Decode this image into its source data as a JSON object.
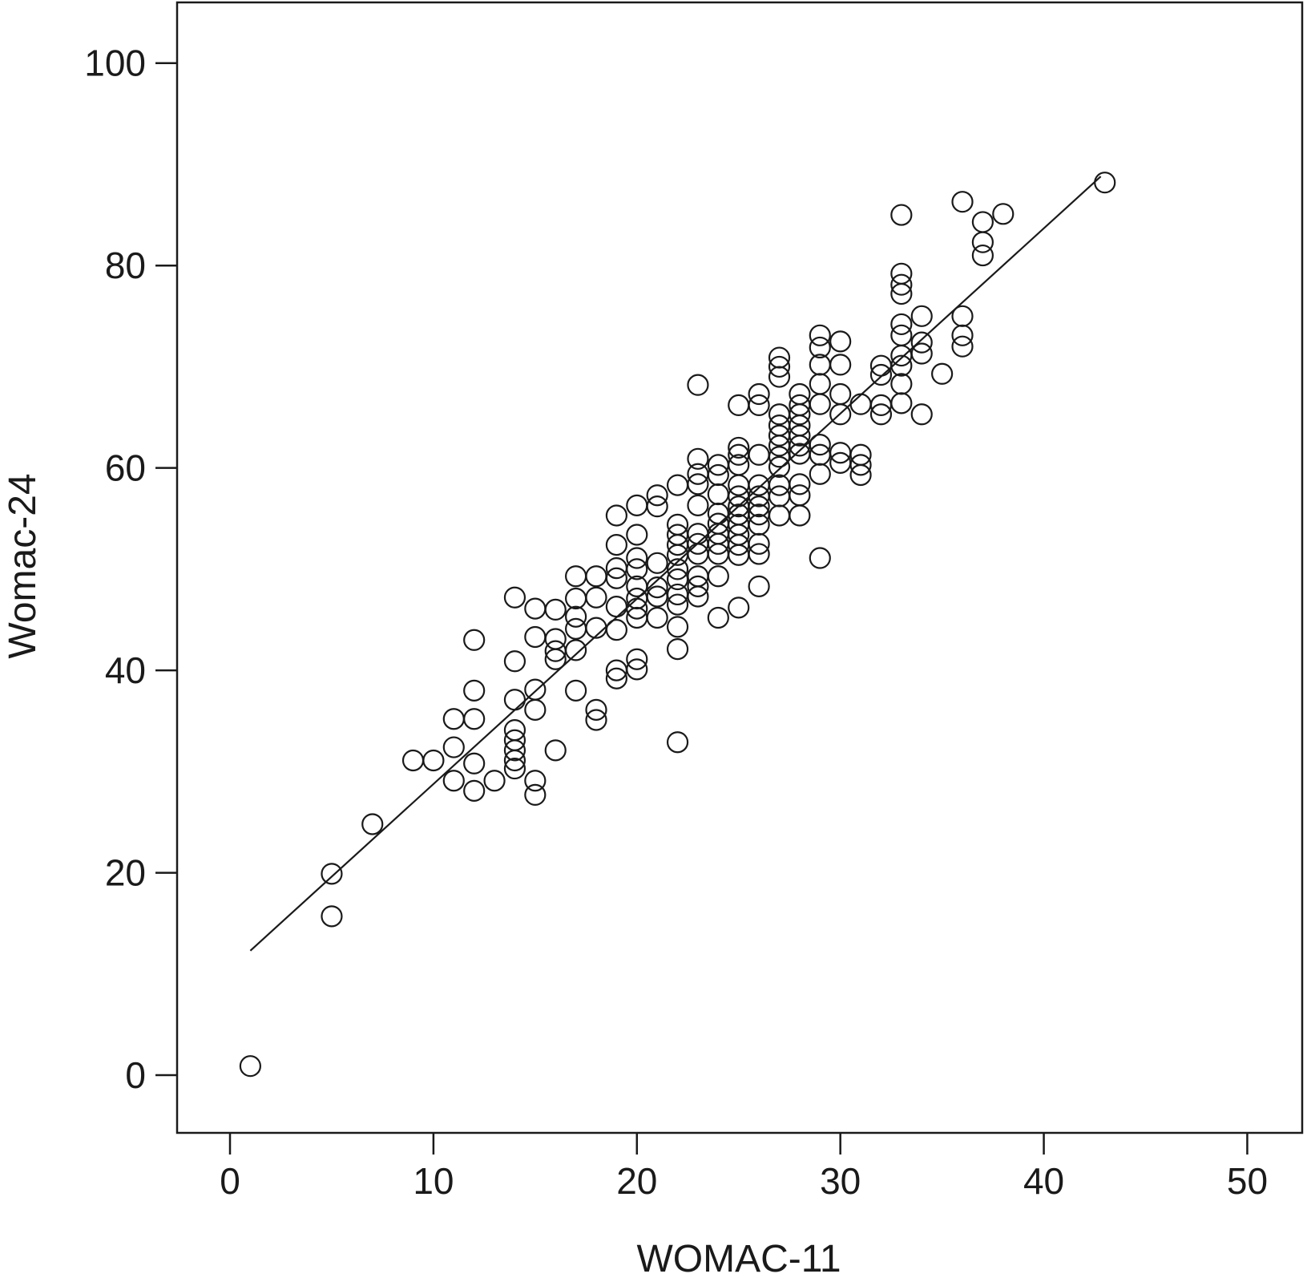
{
  "chart_data": {
    "type": "scatter",
    "title": "",
    "xlabel": "WOMAC-11",
    "ylabel": "Womac-24",
    "xlim": [
      -2.6,
      52.7
    ],
    "ylim": [
      -5.7,
      106
    ],
    "x_ticks": [
      0,
      10,
      20,
      30,
      40,
      50
    ],
    "y_ticks": [
      0,
      20,
      40,
      60,
      80,
      100
    ],
    "x_tick_labels": [
      "0",
      "10",
      "20",
      "30",
      "40",
      "50"
    ],
    "y_tick_labels": [
      "0",
      "20",
      "40",
      "60",
      "80",
      "100"
    ],
    "grid": false,
    "legend": "none",
    "marker": "open-circle",
    "colors": {
      "line": "#1a1a1a",
      "marker_stroke": "#1a1a1a",
      "background": "#ffffff"
    },
    "fit_line": {
      "x": [
        1,
        42.8
      ],
      "y": [
        12.3,
        88.8
      ]
    },
    "series": [
      {
        "points": [
          [
            1,
            0.9
          ],
          [
            5,
            19.9
          ],
          [
            5,
            15.7
          ],
          [
            7,
            24.8
          ],
          [
            9,
            31.1
          ],
          [
            10,
            31.1
          ],
          [
            11,
            35.2
          ],
          [
            11,
            32.4
          ],
          [
            11,
            29.1
          ],
          [
            12,
            43
          ],
          [
            12,
            38
          ],
          [
            12,
            35.2
          ],
          [
            12,
            30.8
          ],
          [
            12,
            28.1
          ],
          [
            13,
            29.1
          ],
          [
            14,
            47.2
          ],
          [
            14,
            40.9
          ],
          [
            14,
            37.1
          ],
          [
            14,
            34.1
          ],
          [
            14,
            33.1
          ],
          [
            14,
            32.1
          ],
          [
            14,
            31.1
          ],
          [
            14,
            30.3
          ],
          [
            15,
            46.1
          ],
          [
            15,
            43.3
          ],
          [
            15,
            38.1
          ],
          [
            15,
            36.1
          ],
          [
            15,
            29.1
          ],
          [
            15,
            27.7
          ],
          [
            16,
            46
          ],
          [
            16,
            43.1
          ],
          [
            16,
            41.9
          ],
          [
            16,
            41.1
          ],
          [
            16,
            32.1
          ],
          [
            17,
            49.3
          ],
          [
            17,
            47.1
          ],
          [
            17,
            45.3
          ],
          [
            17,
            44.1
          ],
          [
            17,
            42
          ],
          [
            17,
            38
          ],
          [
            18,
            49.3
          ],
          [
            18,
            47.2
          ],
          [
            18,
            44.2
          ],
          [
            18,
            36.1
          ],
          [
            18,
            35.1
          ],
          [
            19,
            55.3
          ],
          [
            19,
            52.4
          ],
          [
            19,
            50.1
          ],
          [
            19,
            49.1
          ],
          [
            19,
            46.3
          ],
          [
            19,
            44
          ],
          [
            19,
            40
          ],
          [
            19,
            39.2
          ],
          [
            20,
            56.3
          ],
          [
            20,
            53.4
          ],
          [
            20,
            51.1
          ],
          [
            20,
            50
          ],
          [
            20,
            48.3
          ],
          [
            20,
            47.1
          ],
          [
            20,
            46.1
          ],
          [
            20,
            45.2
          ],
          [
            20,
            41.1
          ],
          [
            20,
            40.1
          ],
          [
            21,
            57.3
          ],
          [
            21,
            56.2
          ],
          [
            21,
            50.6
          ],
          [
            21,
            48.2
          ],
          [
            21,
            47.3
          ],
          [
            21,
            45.2
          ],
          [
            22,
            58.3
          ],
          [
            22,
            54.4
          ],
          [
            22,
            53.4
          ],
          [
            22,
            52.4
          ],
          [
            22,
            51.4
          ],
          [
            22,
            50
          ],
          [
            22,
            49
          ],
          [
            22,
            47.5
          ],
          [
            22,
            46.5
          ],
          [
            22,
            44.3
          ],
          [
            22,
            42.1
          ],
          [
            22,
            32.9
          ],
          [
            23,
            68.2
          ],
          [
            23,
            60.9
          ],
          [
            23,
            59.4
          ],
          [
            23,
            58.4
          ],
          [
            23,
            56.3
          ],
          [
            23,
            53.5
          ],
          [
            23,
            52.5
          ],
          [
            23,
            51.5
          ],
          [
            23,
            49.3
          ],
          [
            23,
            48.3
          ],
          [
            23,
            47.3
          ],
          [
            24,
            60.3
          ],
          [
            24,
            59.3
          ],
          [
            24,
            57.4
          ],
          [
            24,
            55.5
          ],
          [
            24,
            54.5
          ],
          [
            24,
            53.5
          ],
          [
            24,
            52.5
          ],
          [
            24,
            51.5
          ],
          [
            24,
            49.3
          ],
          [
            24,
            45.2
          ],
          [
            25,
            66.2
          ],
          [
            25,
            62
          ],
          [
            25,
            61.3
          ],
          [
            25,
            60.3
          ],
          [
            25,
            58.3
          ],
          [
            25,
            57.2
          ],
          [
            25,
            56.2
          ],
          [
            25,
            55.4
          ],
          [
            25,
            54.4
          ],
          [
            25,
            53.4
          ],
          [
            25,
            52.4
          ],
          [
            25,
            51.4
          ],
          [
            25,
            46.2
          ],
          [
            26,
            67.3
          ],
          [
            26,
            66.2
          ],
          [
            26,
            61.3
          ],
          [
            26,
            58.3
          ],
          [
            26,
            57.2
          ],
          [
            26,
            56.2
          ],
          [
            26,
            55.4
          ],
          [
            26,
            54.4
          ],
          [
            26,
            52.5
          ],
          [
            26,
            51.5
          ],
          [
            26,
            48.3
          ],
          [
            27,
            70.9
          ],
          [
            27,
            70
          ],
          [
            27,
            69
          ],
          [
            27,
            65.3
          ],
          [
            27,
            64.2
          ],
          [
            27,
            63.2
          ],
          [
            27,
            62.2
          ],
          [
            27,
            61.1
          ],
          [
            27,
            60.1
          ],
          [
            27,
            58.3
          ],
          [
            27,
            57.2
          ],
          [
            27,
            55.3
          ],
          [
            28,
            67.3
          ],
          [
            28,
            66.2
          ],
          [
            28,
            65.3
          ],
          [
            28,
            64.2
          ],
          [
            28,
            63.2
          ],
          [
            28,
            62.2
          ],
          [
            28,
            61.4
          ],
          [
            28,
            58.4
          ],
          [
            28,
            57.3
          ],
          [
            28,
            55.3
          ],
          [
            29,
            73.1
          ],
          [
            29,
            71.9
          ],
          [
            29,
            70.2
          ],
          [
            29,
            68.3
          ],
          [
            29,
            66.3
          ],
          [
            29,
            62.3
          ],
          [
            29,
            61.3
          ],
          [
            29,
            59.4
          ],
          [
            29,
            51.1
          ],
          [
            30,
            72.5
          ],
          [
            30,
            70.2
          ],
          [
            30,
            67.3
          ],
          [
            30,
            65.3
          ],
          [
            30,
            61.5
          ],
          [
            30,
            60.5
          ],
          [
            31,
            66.3
          ],
          [
            31,
            61.3
          ],
          [
            31,
            60.3
          ],
          [
            31,
            59.3
          ],
          [
            32,
            70.1
          ],
          [
            32,
            69.2
          ],
          [
            32,
            66.2
          ],
          [
            32,
            65.3
          ],
          [
            33,
            85
          ],
          [
            33,
            79.2
          ],
          [
            33,
            78.1
          ],
          [
            33,
            77.2
          ],
          [
            33,
            74.2
          ],
          [
            33,
            73.1
          ],
          [
            33,
            71.1
          ],
          [
            33,
            70.1
          ],
          [
            33,
            68.3
          ],
          [
            33,
            66.4
          ],
          [
            34,
            75
          ],
          [
            34,
            72.4
          ],
          [
            34,
            71.3
          ],
          [
            34,
            65.3
          ],
          [
            35,
            69.3
          ],
          [
            36,
            86.3
          ],
          [
            36,
            75
          ],
          [
            36,
            73.1
          ],
          [
            36,
            72
          ],
          [
            37,
            84.3
          ],
          [
            37,
            82.3
          ],
          [
            37,
            81
          ],
          [
            38,
            85.1
          ],
          [
            43,
            88.2
          ]
        ]
      }
    ]
  }
}
